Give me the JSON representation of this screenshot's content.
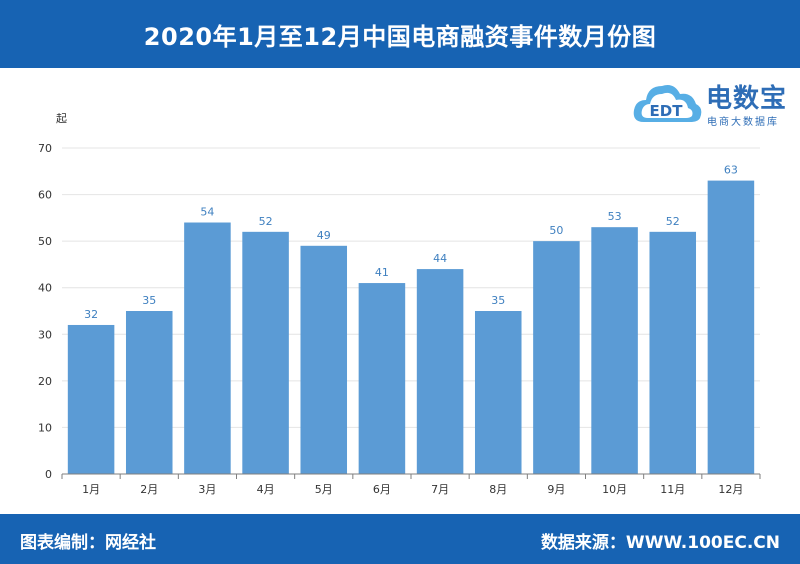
{
  "header": {
    "title": "2020年1月至12月中国电商融资事件数月份图"
  },
  "footer": {
    "left": "图表编制：网经社",
    "right": "数据来源：WWW.100EC.CN"
  },
  "logo": {
    "brand": "电数宝",
    "sub": "电商大数据库",
    "mark_text": "EDT"
  },
  "colors": {
    "bar": "#5b9bd5",
    "header_bg": "#1763b3",
    "label": "#3f80c0"
  },
  "chart_data": {
    "type": "bar",
    "title": "2020年1月至12月中国电商融资事件数月份图",
    "ylabel": "起",
    "xlabel": "",
    "categories": [
      "1月",
      "2月",
      "3月",
      "4月",
      "5月",
      "6月",
      "7月",
      "8月",
      "9月",
      "10月",
      "11月",
      "12月"
    ],
    "values": [
      32,
      35,
      54,
      52,
      49,
      41,
      44,
      35,
      50,
      53,
      52,
      63
    ],
    "ylim": [
      0,
      70
    ],
    "yticks": [
      0,
      10,
      20,
      30,
      40,
      50,
      60,
      70
    ],
    "grid": true,
    "data_labels": true,
    "legend": "none"
  }
}
